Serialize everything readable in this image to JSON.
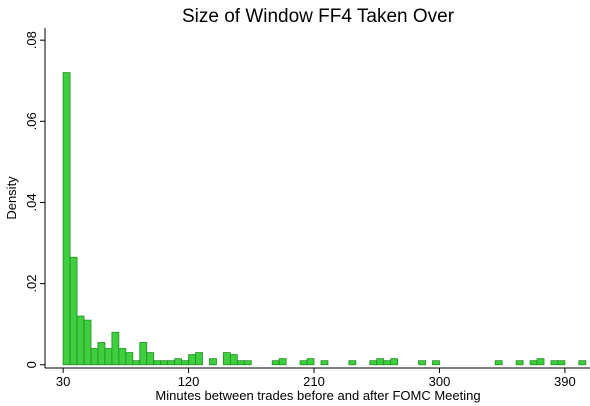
{
  "chart_data": {
    "type": "histogram",
    "title": "Size of Window FF4 Taken Over",
    "x_label": "Minutes between trades before and after FOMC Meeting",
    "y_label": "Density",
    "bins": [
      30,
      35,
      40,
      45,
      50,
      55,
      60,
      65,
      70,
      75,
      80,
      85,
      90,
      95,
      100,
      105,
      110,
      115,
      120,
      125,
      130,
      135,
      140,
      145,
      150,
      155,
      160,
      165,
      170,
      175,
      180,
      185,
      190,
      195,
      200,
      205,
      210,
      215,
      220,
      225,
      230,
      235,
      240,
      245,
      250,
      255,
      260,
      265,
      270,
      275,
      280,
      285,
      290,
      295,
      300,
      305,
      310,
      315,
      320,
      325,
      330,
      335,
      340,
      345,
      350,
      355,
      360,
      365,
      370,
      375,
      380,
      385,
      390,
      395,
      400,
      405
    ],
    "values": [
      0.072,
      0.0265,
      0.012,
      0.011,
      0.004,
      0.0055,
      0.004,
      0.008,
      0.004,
      0.003,
      0.001,
      0.0055,
      0.003,
      0.001,
      0.001,
      0.001,
      0.0015,
      0.001,
      0.0025,
      0.003,
      0,
      0.0015,
      0,
      0.003,
      0.0025,
      0.001,
      0.001,
      0,
      0,
      0,
      0.001,
      0.0015,
      0,
      0,
      0.001,
      0.0015,
      0,
      0.001,
      0,
      0,
      0,
      0.001,
      0,
      0,
      0.001,
      0.0015,
      0.001,
      0.0015,
      0,
      0,
      0,
      0.001,
      0,
      0.001,
      0,
      0,
      0,
      0,
      0,
      0,
      0,
      0,
      0.001,
      0,
      0,
      0.001,
      0,
      0.001,
      0.0015,
      0,
      0.001,
      0.001,
      0,
      0,
      0.001
    ],
    "color": "#3fce3f",
    "xlim": [
      17,
      408
    ],
    "ylim": [
      -0.0008,
      0.083
    ],
    "xticks": [
      30,
      120,
      210,
      300,
      390
    ],
    "yticks": [
      0,
      {
        "value": 0.02,
        "label": ".02"
      },
      {
        "value": 0.04,
        "label": ".04"
      },
      {
        "value": 0.06,
        "label": ".06"
      },
      {
        "value": 0.08,
        "label": ".08"
      }
    ]
  }
}
